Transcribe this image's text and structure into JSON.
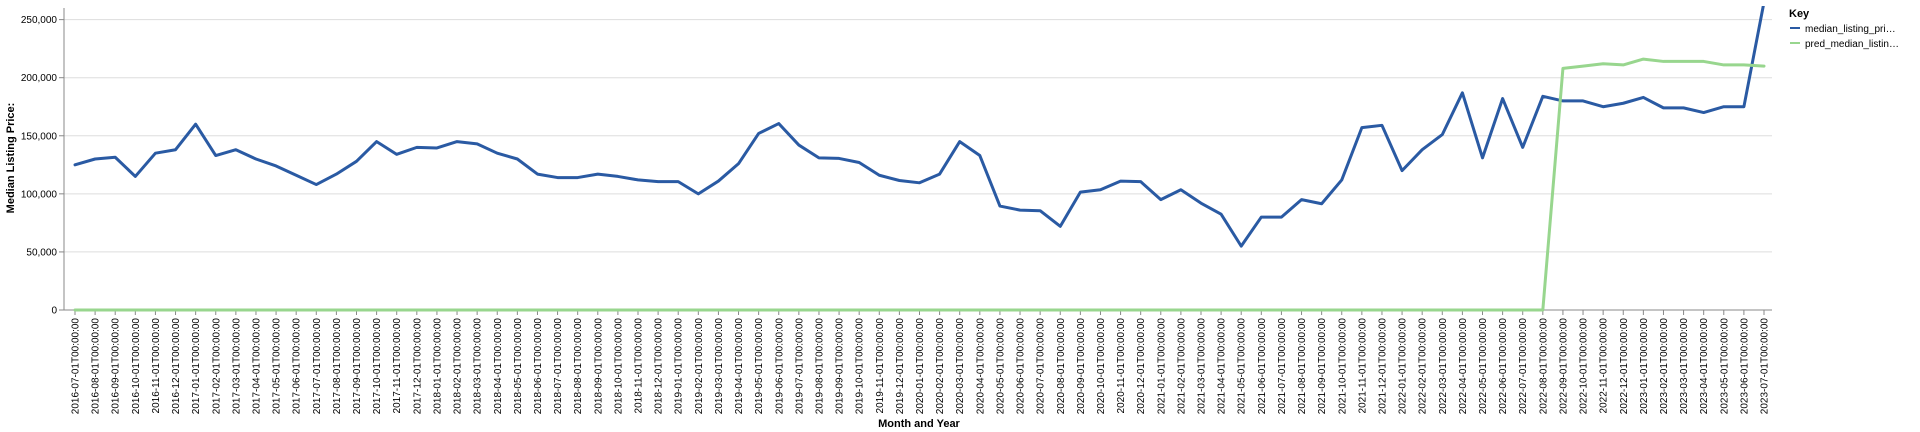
{
  "chart_data": {
    "type": "line",
    "xlabel": "Month and Year",
    "ylabel": "Median Listing Price:",
    "ylim": [
      0,
      260000
    ],
    "yticks": [
      0,
      50000,
      100000,
      150000,
      200000,
      250000
    ],
    "ytick_labels": [
      "0",
      "50,000",
      "100,000",
      "150,000",
      "200,000",
      "250,000"
    ],
    "grid": true,
    "legend": {
      "title": "Key",
      "placement": "top-right",
      "entries": [
        "median_listing_pri…",
        "pred_median_listin…"
      ]
    },
    "x": [
      "2016-07-01T00:00:00",
      "2016-08-01T00:00:00",
      "2016-09-01T00:00:00",
      "2016-10-01T00:00:00",
      "2016-11-01T00:00:00",
      "2016-12-01T00:00:00",
      "2017-01-01T00:00:00",
      "2017-02-01T00:00:00",
      "2017-03-01T00:00:00",
      "2017-04-01T00:00:00",
      "2017-05-01T00:00:00",
      "2017-06-01T00:00:00",
      "2017-07-01T00:00:00",
      "2017-08-01T00:00:00",
      "2017-09-01T00:00:00",
      "2017-10-01T00:00:00",
      "2017-11-01T00:00:00",
      "2017-12-01T00:00:00",
      "2018-01-01T00:00:00",
      "2018-02-01T00:00:00",
      "2018-03-01T00:00:00",
      "2018-04-01T00:00:00",
      "2018-05-01T00:00:00",
      "2018-06-01T00:00:00",
      "2018-07-01T00:00:00",
      "2018-08-01T00:00:00",
      "2018-09-01T00:00:00",
      "2018-10-01T00:00:00",
      "2018-11-01T00:00:00",
      "2018-12-01T00:00:00",
      "2019-01-01T00:00:00",
      "2019-02-01T00:00:00",
      "2019-03-01T00:00:00",
      "2019-04-01T00:00:00",
      "2019-05-01T00:00:00",
      "2019-06-01T00:00:00",
      "2019-07-01T00:00:00",
      "2019-08-01T00:00:00",
      "2019-09-01T00:00:00",
      "2019-10-01T00:00:00",
      "2019-11-01T00:00:00",
      "2019-12-01T00:00:00",
      "2020-01-01T00:00:00",
      "2020-02-01T00:00:00",
      "2020-03-01T00:00:00",
      "2020-04-01T00:00:00",
      "2020-05-01T00:00:00",
      "2020-06-01T00:00:00",
      "2020-07-01T00:00:00",
      "2020-08-01T00:00:00",
      "2020-09-01T00:00:00",
      "2020-10-01T00:00:00",
      "2020-11-01T00:00:00",
      "2020-12-01T00:00:00",
      "2021-01-01T00:00:00",
      "2021-02-01T00:00:00",
      "2021-03-01T00:00:00",
      "2021-04-01T00:00:00",
      "2021-05-01T00:00:00",
      "2021-06-01T00:00:00",
      "2021-07-01T00:00:00",
      "2021-08-01T00:00:00",
      "2021-09-01T00:00:00",
      "2021-10-01T00:00:00",
      "2021-11-01T00:00:00",
      "2021-12-01T00:00:00",
      "2022-01-01T00:00:00",
      "2022-02-01T00:00:00",
      "2022-03-01T00:00:00",
      "2022-04-01T00:00:00",
      "2022-05-01T00:00:00",
      "2022-06-01T00:00:00",
      "2022-07-01T00:00:00",
      "2022-08-01T00:00:00",
      "2022-09-01T00:00:00",
      "2022-10-01T00:00:00",
      "2022-11-01T00:00:00",
      "2022-12-01T00:00:00",
      "2023-01-01T00:00:00",
      "2023-02-01T00:00:00",
      "2023-03-01T00:00:00",
      "2023-04-01T00:00:00",
      "2023-05-01T00:00:00",
      "2023-06-01T00:00:00",
      "2023-07-01T00:00:00"
    ],
    "series": [
      {
        "name": "median_listing_pri…",
        "color": "#2a5aa3",
        "values": [
          125000,
          130000,
          131500,
          115000,
          135000,
          138000,
          160000,
          133000,
          138000,
          130000,
          124000,
          116000,
          108000,
          117000,
          128000,
          145000,
          134000,
          140000,
          139500,
          145000,
          143000,
          135000,
          130000,
          117000,
          114000,
          114000,
          117000,
          115000,
          112000,
          110500,
          110500,
          100000,
          111000,
          126000,
          152000,
          160500,
          142000,
          131000,
          130500,
          127000,
          116000,
          111500,
          109500,
          117000,
          145000,
          133000,
          89500,
          86000,
          85500,
          72000,
          101500,
          103500,
          111000,
          110500,
          95000,
          103500,
          92000,
          82500,
          55000,
          80000,
          80000,
          95000,
          91500,
          112000,
          157000,
          159000,
          120000,
          138000,
          151000,
          187000,
          131000,
          182000,
          140000,
          184000,
          180000,
          180000,
          175000,
          178000,
          183000,
          174000,
          174000,
          170000,
          175000,
          175000,
          265000
        ]
      },
      {
        "name": "pred_median_listin…",
        "color": "#98d68e",
        "values": [
          0,
          0,
          0,
          0,
          0,
          0,
          0,
          0,
          0,
          0,
          0,
          0,
          0,
          0,
          0,
          0,
          0,
          0,
          0,
          0,
          0,
          0,
          0,
          0,
          0,
          0,
          0,
          0,
          0,
          0,
          0,
          0,
          0,
          0,
          0,
          0,
          0,
          0,
          0,
          0,
          0,
          0,
          0,
          0,
          0,
          0,
          0,
          0,
          0,
          0,
          0,
          0,
          0,
          0,
          0,
          0,
          0,
          0,
          0,
          0,
          0,
          0,
          0,
          0,
          0,
          0,
          0,
          0,
          0,
          0,
          0,
          0,
          0,
          0,
          208000,
          210000,
          212000,
          211000,
          216000,
          214000,
          214000,
          214000,
          211000,
          211000,
          210000
        ]
      }
    ]
  }
}
